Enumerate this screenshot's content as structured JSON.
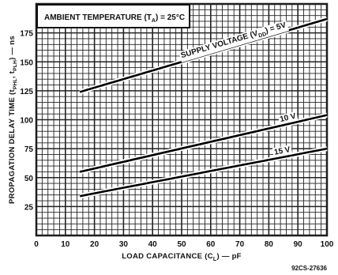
{
  "chart_data": {
    "type": "line",
    "title": "AMBIENT TEMPERATURE (Tₐ) = 25°C",
    "title_parts": {
      "main": "AMBIENT TEMPERATURE (T",
      "sub": "A",
      "tail": ") = 25°C"
    },
    "xlabel": "LOAD CAPACITANCE (Cₗ) — pF",
    "xlabel_parts": {
      "main": "LOAD CAPACITANCE (C",
      "sub": "L",
      "tail": ") — pF"
    },
    "ylabel": "PROPAGATION DELAY TIME (tPHL, tPLH) — ns",
    "ylabel_parts": {
      "main": "PROPAGATION DELAY TIME (t",
      "sub1": "PHL",
      "mid": ", t",
      "sub2": "PLH",
      "tail": ") — ns"
    },
    "xlim": [
      0,
      100
    ],
    "ylim": [
      0,
      200
    ],
    "x_ticks": [
      0,
      10,
      20,
      30,
      40,
      50,
      60,
      70,
      80,
      90,
      100
    ],
    "y_ticks": [
      25,
      50,
      75,
      100,
      125,
      150,
      175
    ],
    "grid": true,
    "series": [
      {
        "name": "SUPPLY VOLTAGE (VDD) = 5V",
        "x": [
          15,
          100
        ],
        "y": [
          124,
          187
        ]
      },
      {
        "name": "10 V",
        "x": [
          15,
          100
        ],
        "y": [
          55,
          104
        ]
      },
      {
        "name": "15 V",
        "x": [
          15,
          100
        ],
        "y": [
          34,
          75
        ]
      }
    ],
    "series_labels": [
      {
        "text": "SUPPLY VOLTAGE (V",
        "sub": "DD",
        "tail": ") = 5V"
      },
      {
        "text": "10 V"
      },
      {
        "text": "15 V"
      }
    ],
    "figure_code": "92CS-27636"
  }
}
